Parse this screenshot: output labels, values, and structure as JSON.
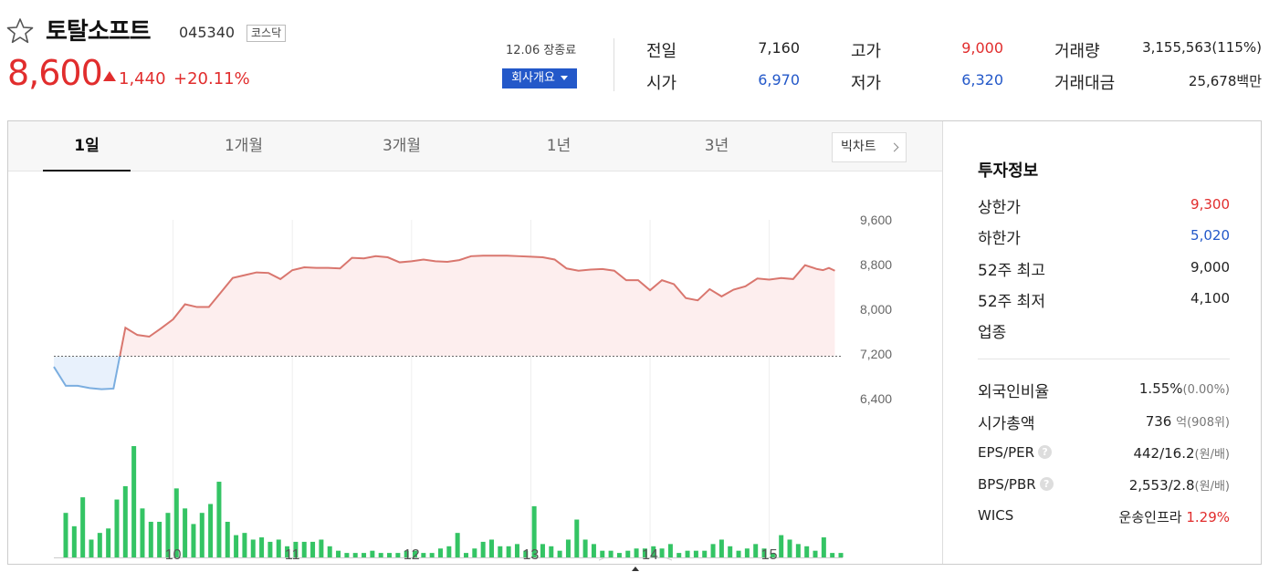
{
  "stock": {
    "name": "토탈소프트",
    "code": "045340",
    "market": "코스닥",
    "price": "8,600",
    "change": "1,440",
    "change_rate": "+20.11%",
    "status": "12.06 장종료",
    "company_button": "회사개요"
  },
  "quote": {
    "prev_close_label": "전일",
    "prev_close": "7,160",
    "high_label": "고가",
    "high": "9,000",
    "volume_label": "거래량",
    "volume": "3,155,563(115%)",
    "open_label": "시가",
    "open": "6,970",
    "low_label": "저가",
    "low": "6,320",
    "amount_label": "거래대금",
    "amount": "25,678백만"
  },
  "tabs": [
    "1일",
    "1개월",
    "3개월",
    "1년",
    "3년"
  ],
  "big_chart_label": "빅차트",
  "chart_data": {
    "type": "line",
    "period": "1일",
    "x_ticks": [
      "10",
      "11",
      "12",
      "13",
      "14",
      "15"
    ],
    "y_ticks": [
      "9,600",
      "8,800",
      "8,000",
      "7,200",
      "6,400"
    ],
    "ylim": [
      6400,
      9600
    ],
    "baseline": 7160,
    "time_range": [
      9.0,
      15.6
    ],
    "price": [
      [
        9.0,
        6970
      ],
      [
        9.1,
        6630
      ],
      [
        9.2,
        6630
      ],
      [
        9.3,
        6590
      ],
      [
        9.4,
        6570
      ],
      [
        9.5,
        6580
      ],
      [
        9.6,
        7670
      ],
      [
        9.7,
        7540
      ],
      [
        9.8,
        7510
      ],
      [
        9.9,
        7660
      ],
      [
        10.0,
        7820
      ],
      [
        10.1,
        8090
      ],
      [
        10.2,
        8040
      ],
      [
        10.3,
        8040
      ],
      [
        10.4,
        8300
      ],
      [
        10.5,
        8560
      ],
      [
        10.6,
        8610
      ],
      [
        10.7,
        8660
      ],
      [
        10.8,
        8650
      ],
      [
        10.9,
        8540
      ],
      [
        11.0,
        8700
      ],
      [
        11.1,
        8750
      ],
      [
        11.2,
        8740
      ],
      [
        11.3,
        8740
      ],
      [
        11.4,
        8730
      ],
      [
        11.5,
        8920
      ],
      [
        11.6,
        8910
      ],
      [
        11.7,
        8950
      ],
      [
        11.8,
        8930
      ],
      [
        11.9,
        8840
      ],
      [
        12.0,
        8860
      ],
      [
        12.1,
        8890
      ],
      [
        12.2,
        8860
      ],
      [
        12.3,
        8850
      ],
      [
        12.4,
        8880
      ],
      [
        12.5,
        8950
      ],
      [
        12.6,
        8960
      ],
      [
        12.7,
        8960
      ],
      [
        12.8,
        8960
      ],
      [
        12.9,
        8950
      ],
      [
        13.0,
        8940
      ],
      [
        13.1,
        8930
      ],
      [
        13.2,
        8890
      ],
      [
        13.3,
        8730
      ],
      [
        13.4,
        8690
      ],
      [
        13.5,
        8710
      ],
      [
        13.6,
        8720
      ],
      [
        13.7,
        8690
      ],
      [
        13.8,
        8520
      ],
      [
        13.9,
        8520
      ],
      [
        14.0,
        8340
      ],
      [
        14.1,
        8520
      ],
      [
        14.2,
        8450
      ],
      [
        14.3,
        8200
      ],
      [
        14.4,
        8160
      ],
      [
        14.5,
        8360
      ],
      [
        14.6,
        8230
      ],
      [
        14.7,
        8350
      ],
      [
        14.8,
        8410
      ],
      [
        14.9,
        8550
      ],
      [
        15.0,
        8530
      ],
      [
        15.1,
        8560
      ],
      [
        15.2,
        8540
      ],
      [
        15.3,
        8790
      ],
      [
        15.4,
        8720
      ],
      [
        15.45,
        8700
      ],
      [
        15.5,
        8740
      ],
      [
        15.55,
        8690
      ]
    ],
    "volume": [
      20,
      14,
      27,
      8,
      11,
      13,
      26,
      32,
      50,
      22,
      16,
      16,
      20,
      31,
      22,
      15,
      20,
      24,
      34,
      16,
      10,
      11,
      8,
      9,
      7,
      8,
      5,
      7,
      7,
      7,
      8,
      5,
      3,
      2,
      2,
      2,
      3,
      2,
      2,
      2,
      3,
      3,
      2,
      2,
      4,
      5,
      11,
      2,
      4,
      7,
      8,
      5,
      5,
      6,
      3,
      23,
      6,
      5,
      3,
      8,
      17,
      8,
      6,
      3,
      3,
      2,
      3,
      4,
      4,
      5,
      4,
      6,
      2,
      3,
      3,
      3,
      6,
      8,
      5,
      3,
      4,
      6,
      4,
      2,
      10,
      8,
      6,
      5,
      3,
      9,
      2,
      2
    ]
  },
  "info": {
    "title": "투자정보",
    "upper_limit_label": "상한가",
    "upper_limit": "9,300",
    "lower_limit_label": "하한가",
    "lower_limit": "5,020",
    "w52_high_label": "52주 최고",
    "w52_high": "9,000",
    "w52_low_label": "52주 최저",
    "w52_low": "4,100",
    "industry_label": "업종",
    "foreign_label": "외국인비율",
    "foreign": "1.55%",
    "foreign_sub": "(0.00%)",
    "mcap_label": "시가총액",
    "mcap": "736",
    "mcap_unit": "억",
    "mcap_rank": "(908위)",
    "eps_per_label": "EPS/PER",
    "eps_per": "442/16.2",
    "eps_per_unit": "(원/배)",
    "bps_pbr_label": "BPS/PBR",
    "bps_pbr": "2,553/2.8",
    "bps_pbr_unit": "(원/배)",
    "wics_label": "WICS",
    "wics": "운송인프라",
    "wics_rate": "1.29%",
    "help_glyph": "?"
  },
  "colors": {
    "up": "#e12d2d",
    "down": "#2358c9",
    "line_up": "#d9766e",
    "fill_up": "#fdeeee",
    "line_down": "#7baee0",
    "fill_down": "#e8f1fc",
    "volume": "#34c464"
  }
}
